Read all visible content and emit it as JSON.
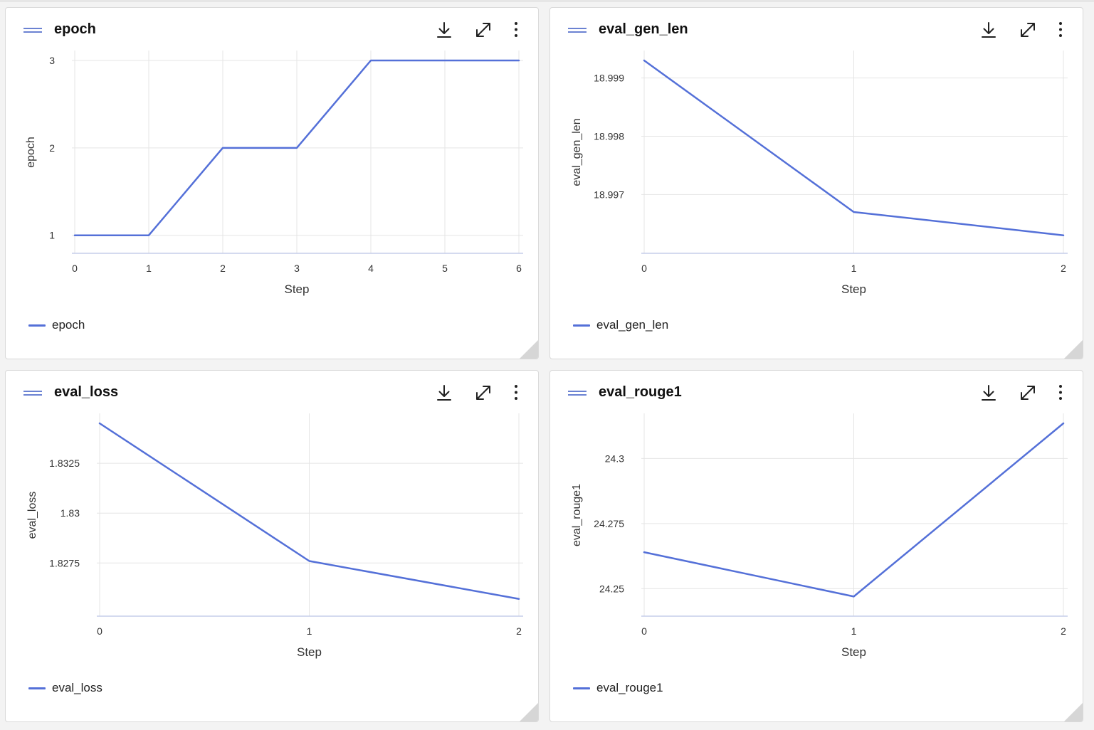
{
  "colors": {
    "series": "#5470d8",
    "grid": "#e5e5e5",
    "axis": "#c5cdea",
    "text": "#333333"
  },
  "icons": [
    "drag-handle-icon",
    "download-icon",
    "expand-icon",
    "more-vertical-icon",
    "resize-corner-icon"
  ],
  "panels": [
    {
      "title": "epoch",
      "legend_label": "epoch",
      "chart_data": {
        "type": "line",
        "title": "epoch",
        "xlabel": "Step",
        "ylabel": "epoch",
        "x": [
          0,
          1,
          2,
          3,
          4,
          5,
          6
        ],
        "xticks": [
          "0",
          "1",
          "2",
          "3",
          "4",
          "5",
          "6"
        ],
        "yticks": [
          "1",
          "2",
          "3"
        ],
        "ylim": [
          0.9,
          3.0
        ],
        "xlim": [
          0,
          6
        ],
        "series": [
          {
            "name": "epoch",
            "values": [
              1,
              1,
              2,
              2,
              3,
              3,
              3
            ]
          }
        ],
        "legend": "bottom-left",
        "grid": true
      }
    },
    {
      "title": "eval_gen_len",
      "legend_label": "eval_gen_len",
      "chart_data": {
        "type": "line",
        "title": "eval_gen_len",
        "xlabel": "Step",
        "ylabel": "eval_gen_len",
        "x": [
          0,
          1,
          2
        ],
        "xticks": [
          "0",
          "1",
          "2"
        ],
        "yticks": [
          "18.997",
          "18.998",
          "18.999"
        ],
        "ylim": [
          18.99615,
          18.9993
        ],
        "xlim": [
          0,
          2
        ],
        "series": [
          {
            "name": "eval_gen_len",
            "values": [
              18.9993,
              18.9967,
              18.9963
            ]
          }
        ],
        "legend": "bottom-left",
        "grid": true
      }
    },
    {
      "title": "eval_loss",
      "legend_label": "eval_loss",
      "chart_data": {
        "type": "line",
        "title": "eval_loss",
        "xlabel": "Step",
        "ylabel": "eval_loss",
        "x": [
          0,
          1,
          2
        ],
        "xticks": [
          "0",
          "1",
          "2"
        ],
        "yticks": [
          "1.8275",
          "1.83",
          "1.8325"
        ],
        "ylim": [
          1.8253,
          1.8345
        ],
        "xlim": [
          0,
          2
        ],
        "series": [
          {
            "name": "eval_loss",
            "values": [
              1.8345,
              1.8276,
              1.8257
            ]
          }
        ],
        "legend": "bottom-left",
        "grid": true
      }
    },
    {
      "title": "eval_rouge1",
      "legend_label": "eval_rouge1",
      "chart_data": {
        "type": "line",
        "title": "eval_rouge1",
        "xlabel": "Step",
        "ylabel": "eval_rouge1",
        "x": [
          0,
          1,
          2
        ],
        "xticks": [
          "0",
          "1",
          "2"
        ],
        "yticks": [
          "24.25",
          "24.275",
          "24.3"
        ],
        "ylim": [
          24.243,
          24.3135
        ],
        "xlim": [
          0,
          2
        ],
        "series": [
          {
            "name": "eval_rouge1",
            "values": [
              24.264,
              24.247,
              24.3135
            ]
          }
        ],
        "legend": "bottom-left",
        "grid": true
      }
    }
  ]
}
